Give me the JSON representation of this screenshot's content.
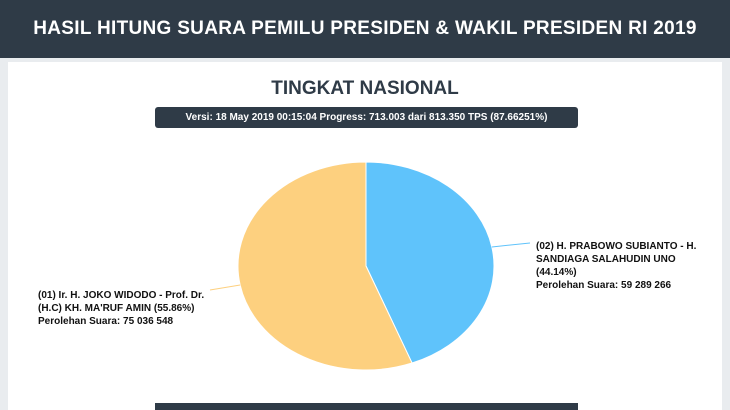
{
  "header": {
    "title": "HASIL HITUNG SUARA PEMILU PRESIDEN & WAKIL PRESIDEN RI 2019"
  },
  "chart_data": {
    "type": "pie",
    "title": "TINGKAT NASIONAL",
    "subtitle": "Versi: 18 May 2019 00:15:04 Progress: 713.003 dari 813.350 TPS (87.66251%)",
    "categories": [
      "(01) Ir. H. JOKO WIDODO - Prof. Dr. (H.C) KH. MA'RUF AMIN",
      "(02) H. PRABOWO SUBIANTO - H. SANDIAGA SALAHUDIN UNO"
    ],
    "values": [
      55.86,
      44.14
    ],
    "value_labels": [
      "(55.86%)",
      "(44.14%)"
    ],
    "colors": [
      "#fdd07f",
      "#5fc3fb"
    ],
    "votes_caption": "Perolehan Suara:",
    "votes": [
      75036548,
      59289266
    ],
    "votes_labels": [
      "75 036 548",
      "59 289 266"
    ]
  }
}
